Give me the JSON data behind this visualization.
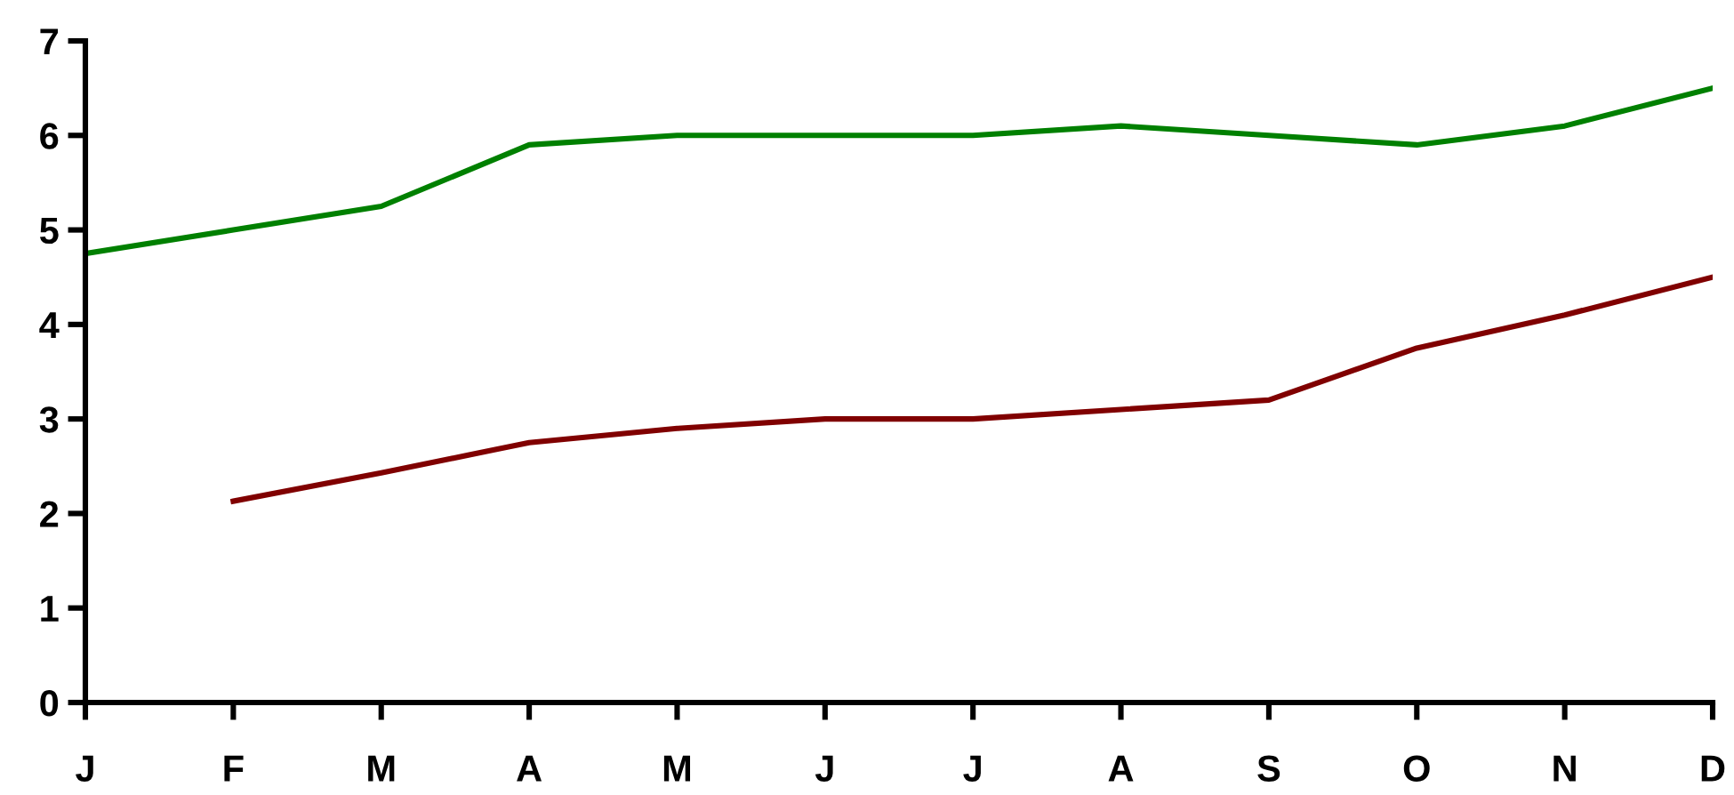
{
  "chart_data": {
    "type": "line",
    "categories": [
      "J",
      "F",
      "M",
      "A",
      "M",
      "J",
      "J",
      "A",
      "S",
      "O",
      "N",
      "D"
    ],
    "series": [
      {
        "color": "#008000",
        "values": [
          4.75,
          5.0,
          5.25,
          5.9,
          6.0,
          6.0,
          6.0,
          6.1,
          6.0,
          5.9,
          6.1,
          6.5
        ]
      },
      {
        "color": "#800000",
        "values": [
          null,
          2.13,
          2.43,
          2.75,
          2.9,
          3.0,
          3.0,
          3.1,
          3.2,
          3.75,
          4.1,
          4.5
        ]
      }
    ],
    "ylim": [
      0,
      7
    ],
    "yticks": [
      0,
      1,
      2,
      3,
      4,
      5,
      6,
      7
    ],
    "grid": false,
    "legend": false,
    "marker": "none",
    "line_style": "solid"
  }
}
